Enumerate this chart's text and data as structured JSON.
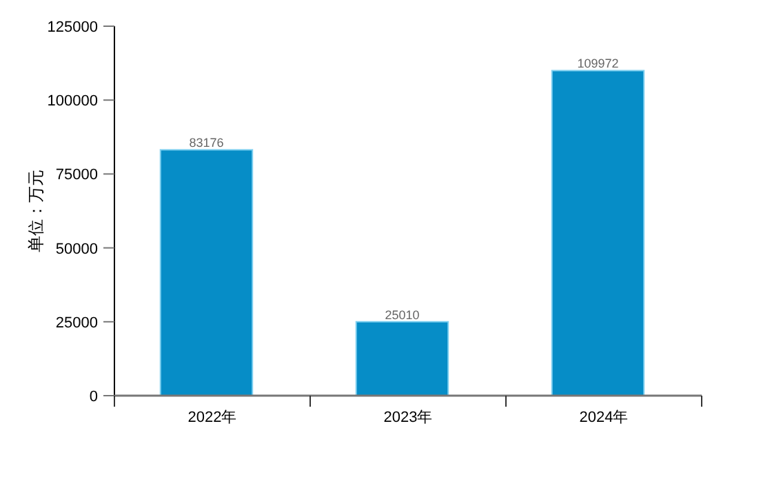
{
  "chart_data": {
    "type": "bar",
    "ylabel": "单位：万元",
    "categories": [
      "2022年",
      "2023年",
      "2024年"
    ],
    "values": [
      83176,
      25010,
      109972
    ],
    "color": "#068dc7",
    "ylim": [
      0,
      125000
    ],
    "yticks": [
      0,
      25000,
      50000,
      75000,
      100000,
      125000
    ],
    "data_labels": true,
    "grid": false
  }
}
